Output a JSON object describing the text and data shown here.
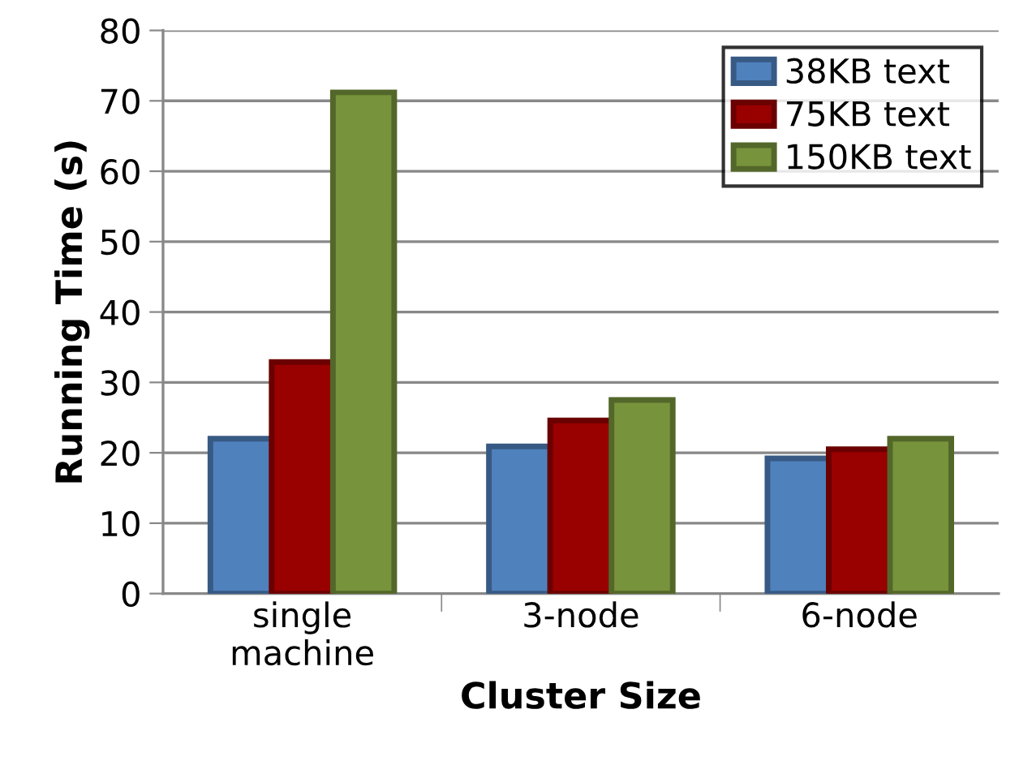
{
  "chart_data": {
    "type": "bar",
    "xlabel": "Cluster Size",
    "ylabel": "Running Time (s)",
    "categories": [
      "single\nmachine",
      "3-node",
      "6-node"
    ],
    "series": [
      {
        "name": "38KB text",
        "color": "#4f81bd",
        "values": [
          22.0,
          20.9,
          19.2
        ]
      },
      {
        "name": "75KB text",
        "color": "#990000",
        "values": [
          32.9,
          24.6,
          20.5
        ]
      },
      {
        "name": "150KB text",
        "color": "#77933c",
        "values": [
          71.2,
          27.5,
          22.0
        ]
      }
    ],
    "ylim": [
      0,
      80
    ],
    "yticks": [
      0,
      10,
      20,
      30,
      40,
      50,
      60,
      70,
      80
    ],
    "grid": "y",
    "legend": "top right"
  }
}
